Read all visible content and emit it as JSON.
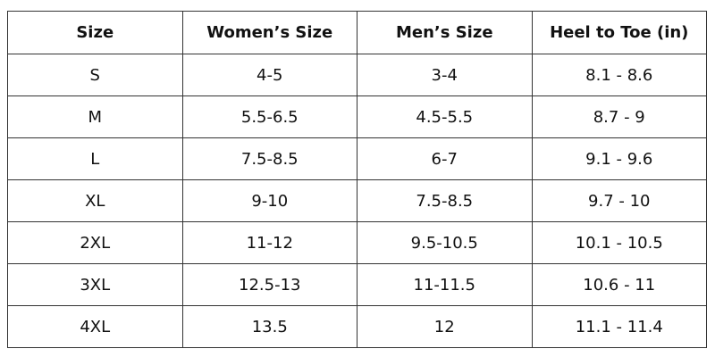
{
  "table": {
    "header": [
      "Size",
      "Women’s Size",
      "Men’s Size",
      "Heel to Toe (in)"
    ],
    "rows": [
      [
        "S",
        "4-5",
        "3-4",
        "8.1 - 8.6"
      ],
      [
        "M",
        "5.5-6.5",
        "4.5-5.5",
        "8.7 - 9"
      ],
      [
        "L",
        "7.5-8.5",
        "6-7",
        "9.1 - 9.6"
      ],
      [
        "XL",
        "9-10",
        "7.5-8.5",
        "9.7 - 10"
      ],
      [
        "2XL",
        "11-12",
        "9.5-10.5",
        "10.1 - 10.5"
      ],
      [
        "3XL",
        "12.5-13",
        "11-11.5",
        "10.6 - 11"
      ],
      [
        "4XL",
        "13.5",
        "12",
        "11.1 - 11.4"
      ]
    ]
  }
}
